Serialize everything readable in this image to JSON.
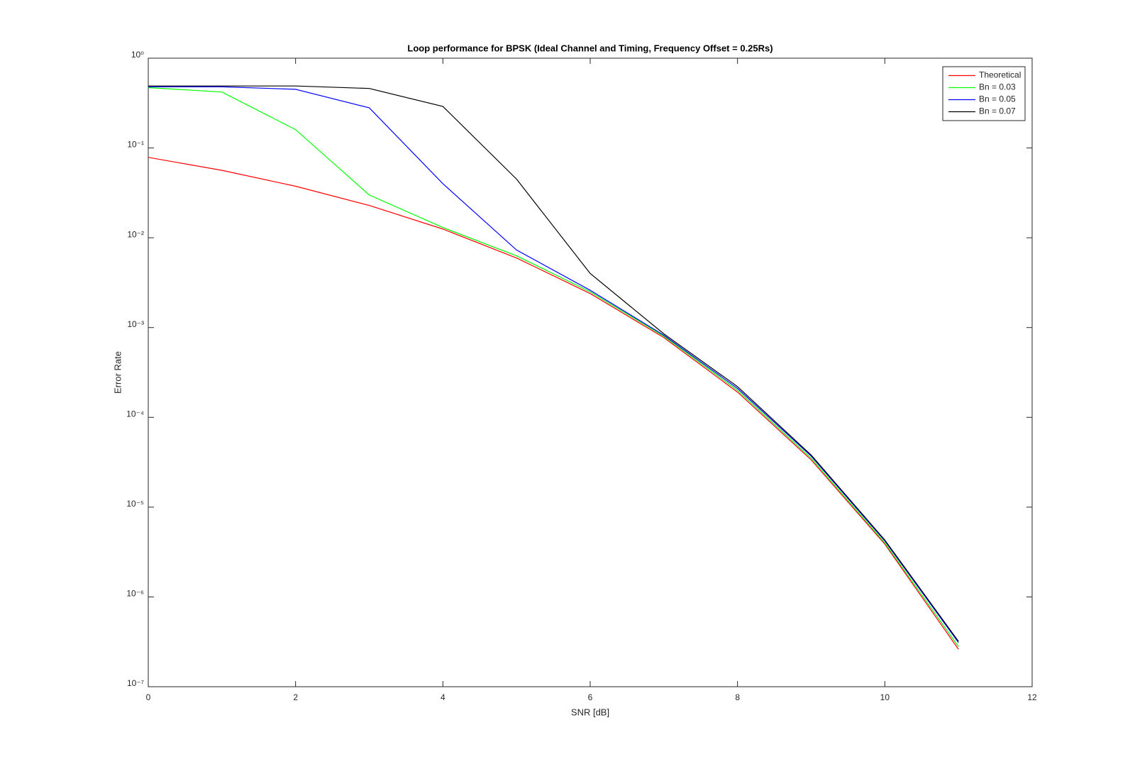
{
  "chart_data": {
    "type": "line",
    "title": "Loop performance for BPSK (Ideal Channel and Timing, Frequency Offset = 0.25Rs)",
    "x_label": "SNR [dB]",
    "y_label": "Error Rate",
    "x": [
      0,
      1,
      2,
      3,
      4,
      5,
      6,
      7,
      8,
      9,
      10,
      11
    ],
    "series": [
      {
        "name": "Theoretical",
        "color": "#ff0000",
        "values": [
          0.0786,
          0.0563,
          0.0375,
          0.0229,
          0.0125,
          0.00595,
          0.00239,
          0.000773,
          0.000191,
          3.36e-05,
          3.87e-06,
          2.61e-07
        ]
      },
      {
        "name": "Bn = 0.03",
        "color": "#00ff00",
        "values": [
          0.47,
          0.42,
          0.16,
          0.03,
          0.013,
          0.0063,
          0.0025,
          0.0008,
          0.0002,
          3.5e-05,
          4e-06,
          2.8e-07
        ]
      },
      {
        "name": "Bn = 0.05",
        "color": "#0000ff",
        "values": [
          0.48,
          0.48,
          0.45,
          0.28,
          0.04,
          0.0073,
          0.0026,
          0.00082,
          0.00021,
          3.7e-05,
          4.2e-06,
          3.1e-07
        ]
      },
      {
        "name": "Bn = 0.07",
        "color": "#000000",
        "values": [
          0.49,
          0.49,
          0.49,
          0.46,
          0.29,
          0.045,
          0.004,
          0.00085,
          0.00022,
          3.8e-05,
          4.3e-06,
          3.2e-07
        ]
      }
    ],
    "xlim": [
      0,
      12
    ],
    "xticks": [
      0,
      2,
      4,
      6,
      8,
      10,
      12
    ],
    "ylim": [
      1e-07,
      1
    ],
    "yscale": "log",
    "yticks": [
      {
        "value": 1e-07,
        "label": "10⁻⁷"
      },
      {
        "value": 1e-06,
        "label": "10⁻⁶"
      },
      {
        "value": 1e-05,
        "label": "10⁻⁵"
      },
      {
        "value": 0.0001,
        "label": "10⁻⁴"
      },
      {
        "value": 0.001,
        "label": "10⁻³"
      },
      {
        "value": 0.01,
        "label": "10⁻²"
      },
      {
        "value": 0.1,
        "label": "10⁻¹"
      },
      {
        "value": 1,
        "label": "10⁰"
      }
    ],
    "grid": false,
    "legend": "northeast"
  }
}
